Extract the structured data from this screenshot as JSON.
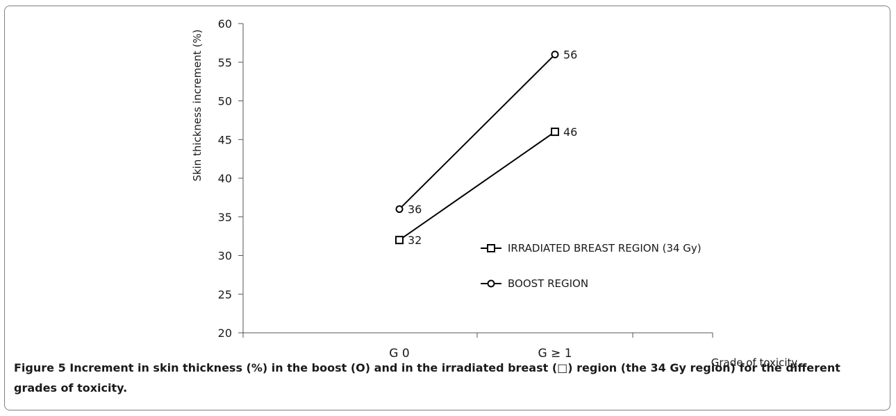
{
  "chart_data": {
    "type": "line",
    "categories": [
      "G 0",
      "G ≥ 1"
    ],
    "series": [
      {
        "name": "IRRADIATED BREAST REGION  (34 Gy)",
        "marker": "square",
        "values": [
          32,
          46
        ],
        "color": "#000000"
      },
      {
        "name": "BOOST REGION",
        "marker": "circle",
        "values": [
          36,
          56
        ],
        "color": "#000000"
      }
    ],
    "ylabel": "Skin thickness increment (%)",
    "xlabel": "Grade of toxicity",
    "ylim": [
      20,
      60
    ],
    "yticks": [
      20,
      25,
      30,
      35,
      40,
      45,
      50,
      55,
      60
    ],
    "grid": false,
    "legend_position": "center-right"
  },
  "caption": {
    "figure_number": "Figure 5",
    "text": " Increment in skin thickness (%) in the boost (O) and in the irradiated breast (□) region (the 34 Gy region) for the different grades of toxicity."
  }
}
